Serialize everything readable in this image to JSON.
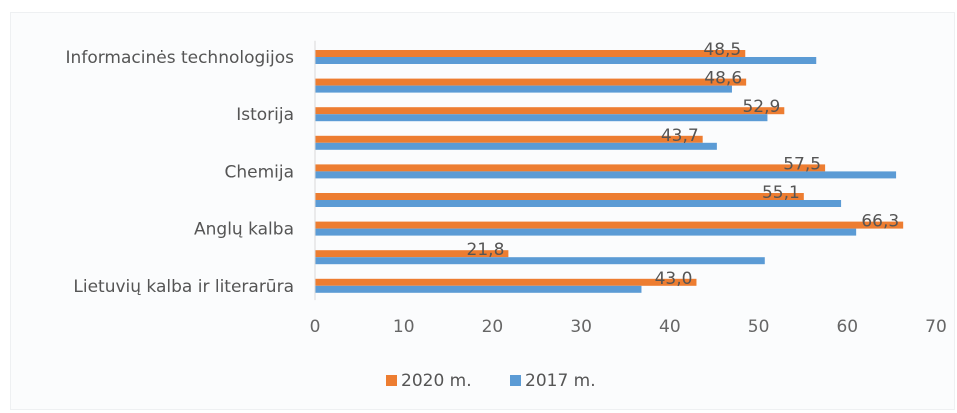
{
  "chart_data": {
    "type": "bar",
    "orientation": "horizontal",
    "categories": [
      "Informacinės technologijos",
      "",
      "Istorija",
      "",
      "Chemija",
      "",
      "Anglų kalba",
      "",
      "Lietuvių kalba  ir literarūra"
    ],
    "series": [
      {
        "name": "2020 m.",
        "color": "#ed7d31",
        "values": [
          48.5,
          48.6,
          52.9,
          43.7,
          57.5,
          55.1,
          66.3,
          21.8,
          43.0
        ],
        "labels": [
          "48,5",
          "48,6",
          "52,9",
          "43,7",
          "57,5",
          "55,1",
          "66,3",
          "21,8",
          "43,0"
        ]
      },
      {
        "name": "2017 m.",
        "color": "#5b9bd5",
        "values": [
          56.5,
          47.0,
          51.0,
          45.3,
          65.5,
          59.3,
          61.0,
          50.7,
          36.8
        ]
      }
    ],
    "xlim": [
      0,
      70
    ],
    "xticks": [
      "0",
      "10",
      "20",
      "30",
      "40",
      "50",
      "60",
      "70"
    ],
    "legend_position": "bottom",
    "grid": false,
    "title": "",
    "xlabel": "",
    "ylabel": ""
  }
}
